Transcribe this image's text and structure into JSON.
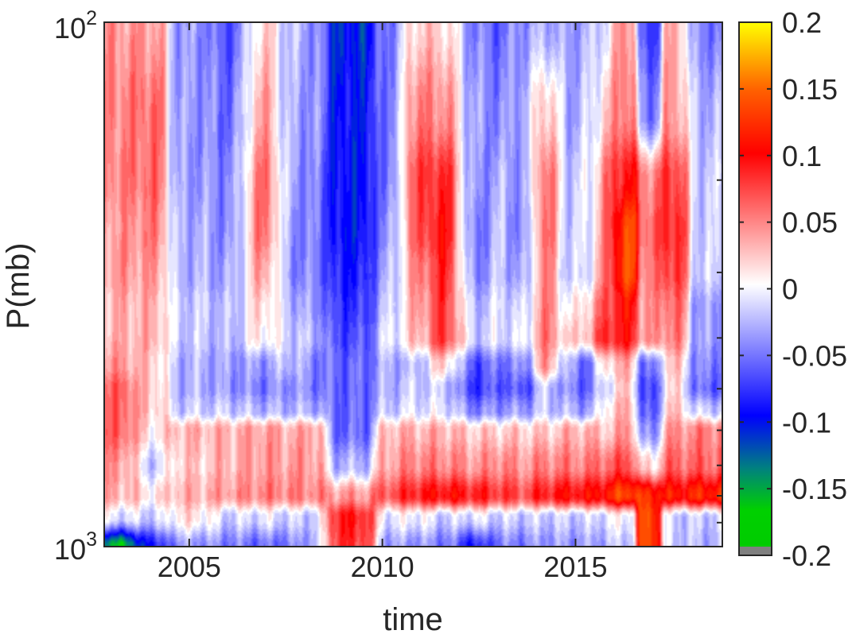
{
  "chart_data": {
    "type": "heatmap",
    "title": "",
    "xlabel": "time",
    "ylabel": "P(mb)",
    "x_ticks": [
      2005,
      2010,
      2015
    ],
    "xlim": [
      2002.8,
      2018.8
    ],
    "y_scale": "log",
    "ylim": [
      100,
      1000
    ],
    "y_tick_labels": [
      {
        "value": 100,
        "base": "10",
        "exp": "2"
      },
      {
        "value": 1000,
        "base": "10",
        "exp": "3"
      }
    ],
    "colorbar": {
      "range": [
        -0.2,
        0.2
      ],
      "ticks": [
        "0.2",
        "0.15",
        "0.1",
        "0.05",
        "0",
        "-0.05",
        "-0.1",
        "-0.15",
        "-0.2"
      ],
      "colormap": [
        "#808080",
        "#00e000",
        "#008080",
        "#0000ff",
        "#ffffff",
        "#ff0000",
        "#ff6000",
        "#ffff00"
      ]
    },
    "layers": [
      {
        "p": 100,
        "amps": [
          0.04,
          0.04,
          -0.04,
          -0.07,
          0.02,
          -0.03,
          -0.04,
          -0.11,
          -0.05,
          0.02,
          0.02,
          -0.05,
          -0.06,
          -0.04,
          -0.03,
          -0.04,
          -0.03,
          -0.01,
          0.05,
          -0.08,
          0.03,
          -0.05
        ]
      },
      {
        "p": 150,
        "amps": [
          0.05,
          0.06,
          -0.04,
          -0.06,
          0.04,
          -0.04,
          -0.04,
          -0.1,
          -0.05,
          0.05,
          0.05,
          -0.04,
          -0.05,
          -0.03,
          0.03,
          -0.04,
          -0.02,
          0.02,
          0.06,
          -0.05,
          0.04,
          -0.03
        ]
      },
      {
        "p": 200,
        "amps": [
          0.05,
          0.06,
          -0.04,
          -0.05,
          0.06,
          -0.04,
          -0.05,
          -0.1,
          -0.05,
          0.07,
          0.09,
          -0.05,
          -0.03,
          -0.04,
          0.06,
          -0.03,
          -0.01,
          0.05,
          0.1,
          0.05,
          0.08,
          -0.02
        ]
      },
      {
        "p": 250,
        "amps": [
          0.04,
          0.05,
          -0.03,
          -0.05,
          0.06,
          -0.05,
          -0.05,
          -0.1,
          -0.04,
          0.06,
          0.1,
          -0.06,
          -0.02,
          -0.05,
          0.06,
          -0.03,
          -0.01,
          0.05,
          0.14,
          0.06,
          0.09,
          -0.02
        ]
      },
      {
        "p": 300,
        "amps": [
          0.04,
          0.04,
          -0.03,
          -0.04,
          0.04,
          -0.05,
          -0.05,
          -0.09,
          -0.03,
          0.04,
          0.09,
          -0.05,
          -0.02,
          -0.04,
          0.05,
          -0.03,
          -0.01,
          0.05,
          0.14,
          0.05,
          0.08,
          -0.02
        ]
      },
      {
        "p": 350,
        "amps": [
          0.03,
          0.03,
          -0.02,
          -0.03,
          0.02,
          -0.03,
          -0.04,
          -0.08,
          -0.02,
          0.03,
          0.08,
          -0.03,
          -0.01,
          -0.02,
          0.05,
          -0.01,
          0.02,
          0.07,
          0.1,
          0.04,
          0.06,
          -0.04
        ]
      },
      {
        "p": 400,
        "amps": [
          0.03,
          0.03,
          -0.02,
          -0.03,
          0.01,
          -0.02,
          -0.03,
          -0.07,
          -0.01,
          0.02,
          0.08,
          -0.02,
          -0.01,
          -0.01,
          0.05,
          0.01,
          0.03,
          0.09,
          0.09,
          0.04,
          0.05,
          -0.04
        ]
      },
      {
        "p": 450,
        "amps": [
          0.04,
          0.02,
          -0.03,
          -0.04,
          -0.04,
          -0.02,
          -0.05,
          -0.06,
          -0.03,
          -0.03,
          0.02,
          -0.07,
          -0.05,
          -0.05,
          0.04,
          -0.04,
          -0.06,
          0.02,
          0.03,
          -0.06,
          0.02,
          -0.05
        ]
      },
      {
        "p": 500,
        "amps": [
          0.06,
          0.02,
          -0.03,
          -0.04,
          -0.05,
          -0.04,
          -0.05,
          -0.06,
          -0.03,
          -0.02,
          -0.02,
          -0.08,
          -0.06,
          -0.07,
          -0.02,
          -0.05,
          -0.06,
          -0.01,
          0.02,
          -0.08,
          0.01,
          -0.06
        ]
      },
      {
        "p": 550,
        "amps": [
          0.06,
          0.02,
          -0.02,
          -0.02,
          -0.03,
          -0.03,
          -0.03,
          -0.06,
          -0.02,
          -0.01,
          -0.01,
          -0.05,
          -0.04,
          -0.04,
          -0.02,
          -0.03,
          -0.04,
          0.01,
          0.03,
          -0.07,
          0.02,
          -0.02
        ]
      },
      {
        "p": 600,
        "amps": [
          0.06,
          0.01,
          0.03,
          0.03,
          0.04,
          0.03,
          0.04,
          -0.06,
          0.03,
          0.03,
          0.03,
          0.02,
          0.02,
          0.02,
          0.02,
          0.03,
          0.03,
          0.02,
          0.04,
          -0.05,
          0.04,
          0.05
        ]
      },
      {
        "p": 700,
        "amps": [
          0.04,
          -0.02,
          0.02,
          0.03,
          0.04,
          0.04,
          0.04,
          -0.03,
          0.04,
          0.05,
          0.05,
          0.04,
          0.05,
          0.04,
          0.05,
          0.05,
          0.05,
          0.06,
          0.07,
          0.01,
          0.06,
          0.06
        ]
      },
      {
        "p": 800,
        "amps": [
          0.03,
          0.01,
          0.03,
          0.04,
          0.05,
          0.05,
          0.05,
          0.04,
          0.07,
          0.09,
          0.1,
          0.09,
          0.08,
          0.07,
          0.09,
          0.1,
          0.1,
          0.11,
          0.14,
          0.12,
          0.11,
          0.12
        ]
      },
      {
        "p": 880,
        "amps": [
          -0.01,
          -0.02,
          0.01,
          -0.02,
          -0.01,
          -0.02,
          -0.02,
          0.09,
          -0.01,
          0.0,
          -0.02,
          -0.01,
          -0.02,
          -0.02,
          -0.02,
          -0.02,
          -0.02,
          -0.01,
          0.0,
          0.14,
          -0.02,
          -0.02
        ]
      },
      {
        "p": 1000,
        "amps": [
          -0.16,
          -0.09,
          -0.04,
          -0.05,
          -0.06,
          -0.05,
          -0.03,
          0.08,
          -0.04,
          -0.04,
          -0.05,
          -0.09,
          -0.05,
          -0.05,
          -0.04,
          -0.04,
          -0.04,
          -0.03,
          -0.02,
          0.14,
          -0.02,
          -0.03
        ]
      }
    ],
    "features": [
      {
        "t": 2003.2,
        "w": 0.45
      },
      {
        "t": 2004.0,
        "w": 0.35
      },
      {
        "t": 2005.1,
        "w": 0.5
      },
      {
        "t": 2006.1,
        "w": 0.45
      },
      {
        "t": 2006.9,
        "w": 0.5
      },
      {
        "t": 2007.6,
        "w": 0.35
      },
      {
        "t": 2008.2,
        "w": 0.28
      },
      {
        "t": 2009.2,
        "w": 0.5
      },
      {
        "t": 2010.2,
        "w": 0.32
      },
      {
        "t": 2010.9,
        "w": 0.35
      },
      {
        "t": 2011.6,
        "w": 0.45
      },
      {
        "t": 2012.4,
        "w": 0.45
      },
      {
        "t": 2013.0,
        "w": 0.3
      },
      {
        "t": 2013.6,
        "w": 0.3
      },
      {
        "t": 2014.3,
        "w": 0.35
      },
      {
        "t": 2014.8,
        "w": 0.3
      },
      {
        "t": 2015.3,
        "w": 0.3
      },
      {
        "t": 2015.8,
        "w": 0.28
      },
      {
        "t": 2016.2,
        "w": 0.28
      },
      {
        "t": 2016.9,
        "w": 0.22
      },
      {
        "t": 2017.6,
        "w": 0.28
      },
      {
        "t": 2018.3,
        "w": 0.35
      }
    ]
  }
}
